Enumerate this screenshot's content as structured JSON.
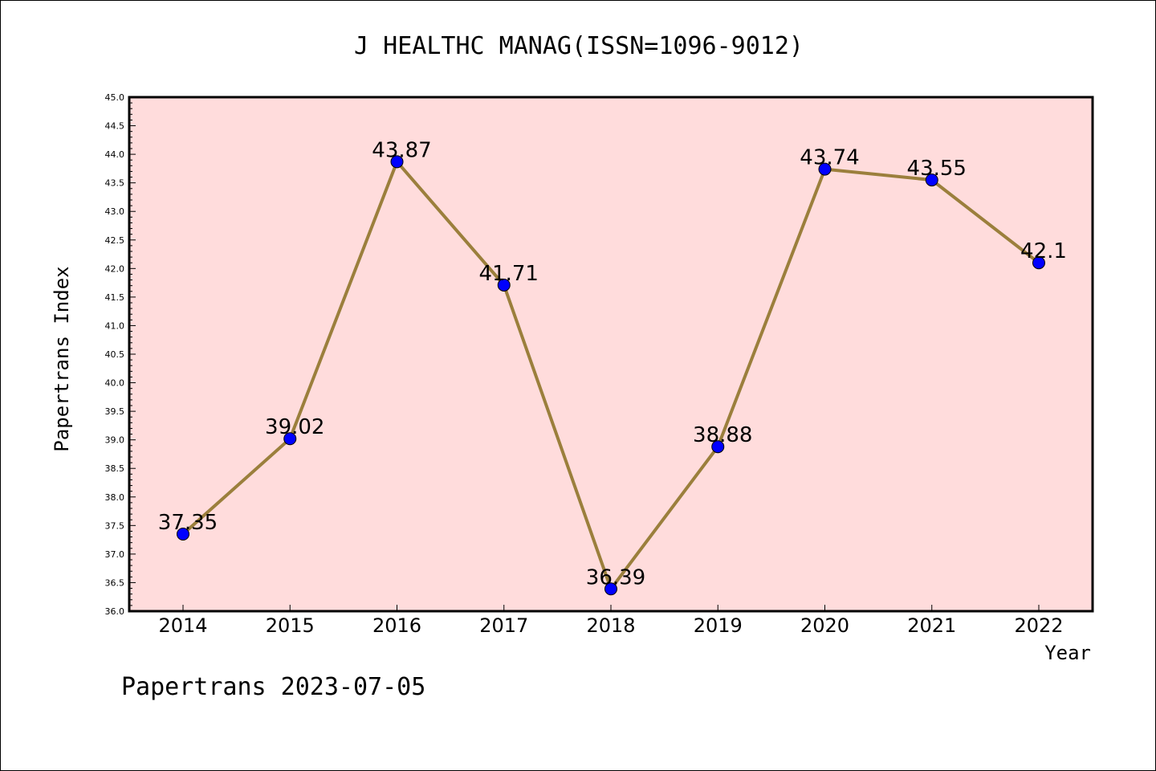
{
  "chart_data": {
    "type": "line",
    "title": "J HEALTHC MANAG(ISSN=1096-9012)",
    "xlabel": "Year",
    "ylabel": "Papertrans Index",
    "categories": [
      "2014",
      "2015",
      "2016",
      "2017",
      "2018",
      "2019",
      "2020",
      "2021",
      "2022"
    ],
    "values": [
      37.35,
      39.02,
      43.87,
      41.71,
      36.39,
      38.88,
      43.74,
      43.55,
      42.1
    ],
    "value_labels": [
      "37.35",
      "39.02",
      "43.87",
      "41.71",
      "36.39",
      "38.88",
      "43.74",
      "43.55",
      "42.1"
    ],
    "ylim": [
      36.0,
      45.0
    ],
    "yticks": [
      "36.0",
      "36.5",
      "37.0",
      "37.5",
      "38.0",
      "38.5",
      "39.0",
      "39.5",
      "40.0",
      "40.5",
      "41.0",
      "41.5",
      "42.0",
      "42.5",
      "43.0",
      "43.5",
      "44.0",
      "44.5",
      "45.0"
    ],
    "grid": false,
    "footer": "Papertrans 2023-07-05",
    "colors": {
      "plot_background": "#ffdcdc",
      "line": "#9b7f3c",
      "marker": "#0000ff",
      "axis": "#000000"
    }
  }
}
